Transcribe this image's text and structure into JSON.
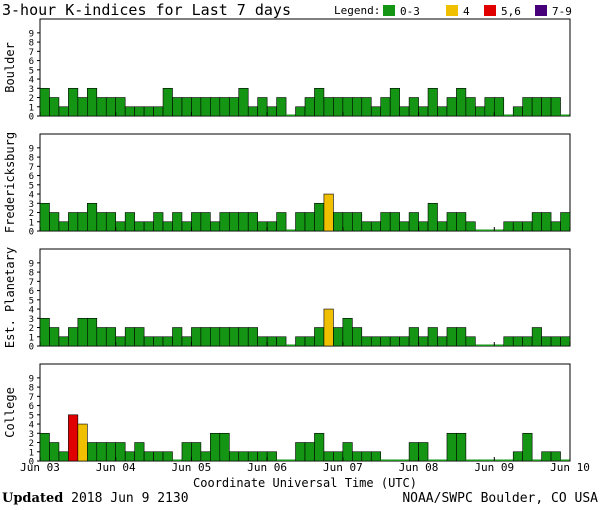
{
  "chart_data": {
    "type": "bar",
    "title": "3-hour K-indices for Last 7 days",
    "legend": {
      "label": "Legend:",
      "placement": "top-right",
      "items": [
        {
          "label": "0-3",
          "color": "#149614"
        },
        {
          "label": "4",
          "color": "#f0c000"
        },
        {
          "label": "5,6",
          "color": "#e00000"
        },
        {
          "label": "7-9",
          "color": "#46007a"
        }
      ]
    },
    "xlabel": "Coordinate Universal Time (UTC)",
    "x_ticks": [
      "Jun 03",
      "Jun 04",
      "Jun 05",
      "Jun 06",
      "Jun 07",
      "Jun 08",
      "Jun 09",
      "Jun 10"
    ],
    "ylim": [
      0,
      9
    ],
    "y_ticks": [
      0,
      1,
      2,
      3,
      4,
      5,
      6,
      7,
      8,
      9
    ],
    "grid": false,
    "panels": [
      {
        "name": "Boulder",
        "values": [
          3,
          2,
          1,
          3,
          2,
          3,
          2,
          2,
          2,
          1,
          1,
          1,
          1,
          3,
          2,
          2,
          2,
          2,
          2,
          2,
          2,
          3,
          1,
          2,
          1,
          2,
          0,
          1,
          2,
          3,
          2,
          2,
          2,
          2,
          2,
          1,
          2,
          3,
          1,
          2,
          1,
          3,
          1,
          2,
          3,
          2,
          1,
          2,
          2,
          0,
          1,
          2,
          2,
          2,
          2,
          0
        ]
      },
      {
        "name": "Fredericksburg",
        "values": [
          3,
          2,
          1,
          2,
          2,
          3,
          2,
          2,
          1,
          2,
          1,
          1,
          2,
          1,
          2,
          1,
          2,
          2,
          1,
          2,
          2,
          2,
          2,
          1,
          1,
          2,
          0,
          2,
          2,
          3,
          4,
          2,
          2,
          2,
          1,
          1,
          2,
          2,
          1,
          2,
          1,
          3,
          1,
          2,
          2,
          1,
          0,
          0,
          0,
          1,
          1,
          1,
          2,
          2,
          1,
          2
        ]
      },
      {
        "name": "Est. Planetary",
        "values": [
          3,
          2,
          1,
          2,
          3,
          3,
          2,
          2,
          1,
          2,
          2,
          1,
          1,
          1,
          2,
          1,
          2,
          2,
          2,
          2,
          2,
          2,
          2,
          1,
          1,
          1,
          0,
          1,
          1,
          2,
          4,
          2,
          3,
          2,
          1,
          1,
          1,
          1,
          1,
          2,
          1,
          2,
          1,
          2,
          2,
          1,
          0,
          0,
          0,
          1,
          1,
          1,
          2,
          1,
          1,
          1
        ]
      },
      {
        "name": "College",
        "values": [
          3,
          2,
          1,
          5,
          4,
          2,
          2,
          2,
          2,
          1,
          2,
          1,
          1,
          1,
          0,
          2,
          2,
          1,
          3,
          3,
          1,
          1,
          1,
          1,
          1,
          0,
          0,
          2,
          2,
          3,
          1,
          1,
          2,
          1,
          1,
          1,
          0,
          0,
          0,
          2,
          2,
          0,
          0,
          3,
          3,
          0,
          0,
          0,
          0,
          0,
          1,
          3,
          0,
          1,
          1,
          0
        ]
      }
    ]
  },
  "footer": {
    "updated_label": "Updated",
    "updated_value": " 2018 Jun  9 2130",
    "credit": "NOAA/SWPC Boulder, CO USA"
  }
}
